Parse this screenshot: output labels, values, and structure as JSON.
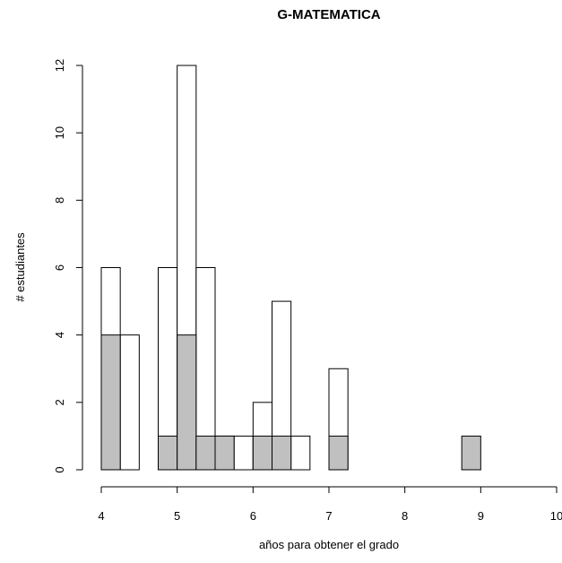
{
  "chart_data": {
    "type": "bar",
    "title": "G-MATEMATICA",
    "xlabel": "años para obtener el grado",
    "ylabel": "# estudiantes",
    "xlim": [
      4,
      10
    ],
    "ylim": [
      0,
      12
    ],
    "x_ticks": [
      "4",
      "5",
      "6",
      "7",
      "8",
      "9",
      "10"
    ],
    "y_ticks": [
      "0",
      "2",
      "4",
      "6",
      "8",
      "10",
      "12"
    ],
    "bin_width": 0.25,
    "bins_start": [
      4.0,
      4.25,
      4.75,
      5.0,
      5.25,
      5.5,
      5.75,
      6.0,
      6.25,
      6.5,
      7.0,
      8.75
    ],
    "series": [
      {
        "values": [
          6,
          4,
          6,
          12,
          6,
          1,
          1,
          2,
          5,
          1,
          3,
          0
        ],
        "color": "#ffffff"
      },
      {
        "values": [
          4,
          0,
          1,
          4,
          1,
          1,
          0,
          1,
          1,
          0,
          1,
          1
        ],
        "color": "#c0c0c0"
      }
    ],
    "grid": false,
    "legend": "none"
  }
}
